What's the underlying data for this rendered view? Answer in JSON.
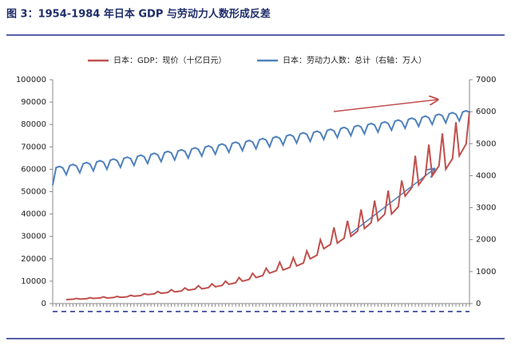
{
  "chart_data": {
    "type": "line",
    "title": "图 3：1954-1984 年日本 GDP 与劳动力人数形成反差",
    "categories": [
      null,
      null,
      null,
      null,
      null,
      null,
      null,
      null,
      null,
      null,
      null,
      null,
      null,
      null,
      null,
      null,
      null,
      null,
      null,
      null,
      null,
      null,
      null,
      null,
      null,
      null,
      null,
      null,
      null,
      null,
      null,
      null,
      null,
      null,
      null,
      null,
      null,
      null,
      null,
      null,
      null,
      null,
      null,
      null,
      null,
      null,
      null,
      null,
      null,
      null,
      null,
      null,
      null,
      null,
      null,
      null,
      null,
      null,
      null,
      null,
      null,
      null,
      null,
      null,
      null,
      null,
      null,
      null,
      null,
      null,
      null,
      null,
      null,
      null,
      null,
      null,
      null,
      null,
      null,
      null,
      null,
      null,
      null,
      null,
      null,
      null,
      null,
      null,
      null,
      null,
      null,
      null,
      null,
      null,
      null,
      null,
      null,
      null,
      null,
      null,
      null,
      null,
      null,
      null,
      null,
      null,
      null,
      null,
      null,
      null,
      null,
      null,
      null,
      null,
      null,
      null,
      null,
      null,
      null,
      null,
      null,
      null,
      null,
      null
    ],
    "series": [
      {
        "name": "日本：GDP：现价（十亿日元）",
        "color": "#c0504d",
        "axis": "y",
        "values": [
          null,
          null,
          null,
          null,
          1800,
          1870,
          1940,
          2300,
          2000,
          2080,
          2160,
          2600,
          2300,
          2390,
          2480,
          3000,
          2500,
          2600,
          2700,
          3200,
          2800,
          2910,
          3020,
          3700,
          3300,
          3430,
          3560,
          4400,
          4000,
          4160,
          4320,
          5400,
          4600,
          4780,
          4970,
          6200,
          5200,
          5410,
          5620,
          7000,
          6000,
          6240,
          6480,
          8000,
          6600,
          6860,
          7130,
          8800,
          7500,
          7800,
          8100,
          10000,
          8600,
          8940,
          9290,
          11600,
          10000,
          10400,
          10800,
          13500,
          11600,
          12060,
          12530,
          15800,
          13600,
          14140,
          14690,
          18500,
          15000,
          15600,
          16200,
          20500,
          16800,
          17470,
          18140,
          23500,
          20000,
          20800,
          21600,
          28500,
          24500,
          25480,
          26460,
          34000,
          27000,
          28080,
          29160,
          37000,
          30000,
          31200,
          32400,
          42000,
          33500,
          34840,
          36180,
          46000,
          37000,
          38480,
          39960,
          50500,
          40000,
          41600,
          43200,
          55000,
          48000,
          49920,
          51840,
          66000,
          53000,
          55120,
          57240,
          71000,
          57000,
          59280,
          61560,
          76000,
          60000,
          62400,
          64800,
          81000,
          66000,
          68640,
          71280,
          86000
        ]
      },
      {
        "name": "日本：劳动力人数：总计（右轴：万人）",
        "color": "#4f81bd",
        "axis": "y2",
        "values": [
          3700,
          4250,
          4290,
          4240,
          4030,
          4310,
          4350,
          4300,
          4090,
          4370,
          4410,
          4360,
          4150,
          4430,
          4470,
          4420,
          4200,
          4480,
          4520,
          4470,
          4260,
          4540,
          4580,
          4530,
          4320,
          4600,
          4640,
          4590,
          4380,
          4660,
          4700,
          4650,
          4440,
          4720,
          4760,
          4710,
          4490,
          4770,
          4810,
          4760,
          4550,
          4830,
          4870,
          4820,
          4610,
          4890,
          4930,
          4880,
          4670,
          4950,
          4990,
          4940,
          4730,
          5010,
          5050,
          5000,
          4780,
          5060,
          5100,
          5050,
          4840,
          5120,
          5160,
          5110,
          4900,
          5180,
          5220,
          5170,
          4960,
          5240,
          5280,
          5230,
          5020,
          5300,
          5340,
          5290,
          5070,
          5350,
          5390,
          5340,
          5130,
          5410,
          5450,
          5400,
          5190,
          5470,
          5510,
          5460,
          5250,
          5530,
          5570,
          5520,
          5310,
          5590,
          5630,
          5580,
          5360,
          5640,
          5680,
          5630,
          5420,
          5700,
          5740,
          5690,
          5480,
          5760,
          5800,
          5750,
          5540,
          5820,
          5860,
          5810,
          5600,
          5880,
          5920,
          5870,
          5650,
          5930,
          5970,
          5920,
          5710,
          5990,
          6030,
          5980
        ]
      }
    ],
    "ylim": [
      0,
      100000
    ],
    "yticks": [
      0,
      10000,
      20000,
      30000,
      40000,
      50000,
      60000,
      70000,
      80000,
      90000,
      100000
    ],
    "y2lim": [
      0,
      7000
    ],
    "y2ticks": [
      0,
      1000,
      2000,
      3000,
      4000,
      5000,
      6000,
      7000
    ],
    "grid": false,
    "legend": "top"
  }
}
